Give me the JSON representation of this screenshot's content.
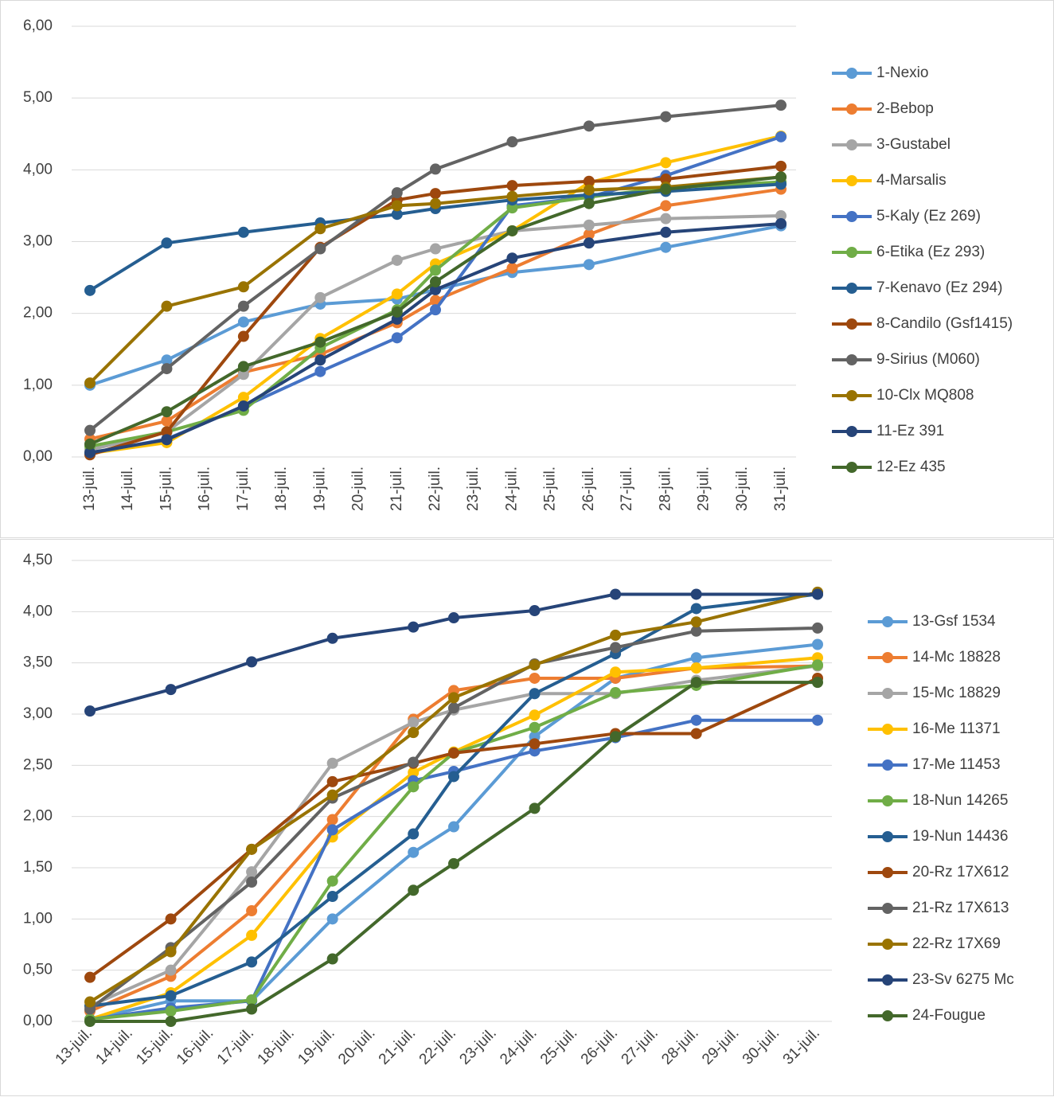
{
  "chart_data": [
    {
      "type": "line",
      "legend": "right",
      "grid": true,
      "x": [
        "13-juil.",
        "15-juil.",
        "17-juil.",
        "19-juil.",
        "21-juil.",
        "22-juil.",
        "24-juil.",
        "26-juil.",
        "28-juil.",
        "31-juil."
      ],
      "xticks": [
        "13-juil.",
        "14-juil.",
        "15-juil.",
        "16-juil.",
        "17-juil.",
        "18-juil.",
        "19-juil.",
        "20-juil.",
        "21-juil.",
        "22-juil.",
        "23-juil.",
        "24-juil.",
        "25-juil.",
        "26-juil.",
        "27-juil.",
        "28-juil.",
        "29-juil.",
        "30-juil.",
        "31-juil."
      ],
      "ylim": [
        0,
        6
      ],
      "yticks": [
        {
          "value": 0,
          "label": "0,00"
        },
        {
          "value": 1,
          "label": "1,00"
        },
        {
          "value": 2,
          "label": "2,00"
        },
        {
          "value": 3,
          "label": "3,00"
        },
        {
          "value": 4,
          "label": "4,00"
        },
        {
          "value": 5,
          "label": "5,00"
        },
        {
          "value": 6,
          "label": "6,00"
        }
      ],
      "series": [
        {
          "name": "1-Nexio",
          "color": "#5b9bd5",
          "values": [
            1.0,
            1.35,
            1.88,
            2.13,
            2.2,
            2.33,
            2.57,
            2.68,
            2.92,
            3.22
          ]
        },
        {
          "name": "2-Bebop",
          "color": "#ed7d31",
          "values": [
            0.25,
            0.5,
            1.18,
            1.43,
            1.87,
            2.18,
            2.63,
            3.1,
            3.5,
            3.73
          ]
        },
        {
          "name": "3-Gustabel",
          "color": "#a5a5a5",
          "values": [
            0.1,
            0.35,
            1.15,
            2.22,
            2.74,
            2.9,
            3.15,
            3.23,
            3.32,
            3.36
          ]
        },
        {
          "name": "4-Marsalis",
          "color": "#ffc000",
          "values": [
            0.05,
            0.2,
            0.83,
            1.65,
            2.27,
            2.69,
            3.15,
            3.82,
            4.1,
            4.47
          ]
        },
        {
          "name": "5-Kaly (Ez 269)",
          "color": "#4472c4",
          "values": [
            0.05,
            0.25,
            0.7,
            1.19,
            1.66,
            2.05,
            3.5,
            3.62,
            3.92,
            4.46
          ]
        },
        {
          "name": "6-Etika (Ez 293)",
          "color": "#70ad47",
          "values": [
            0.15,
            0.35,
            0.65,
            1.52,
            2.05,
            2.6,
            3.47,
            3.62,
            3.75,
            3.83
          ]
        },
        {
          "name": "7-Kenavo (Ez 294)",
          "color": "#255e91",
          "values": [
            2.32,
            2.98,
            3.13,
            3.26,
            3.38,
            3.46,
            3.58,
            3.65,
            3.7,
            3.8
          ]
        },
        {
          "name": "8-Candilo (Gsf1415)",
          "color": "#9e480e",
          "values": [
            0.03,
            0.35,
            1.68,
            2.92,
            3.58,
            3.67,
            3.78,
            3.84,
            3.87,
            4.05
          ]
        },
        {
          "name": "9-Sirius (M060)",
          "color": "#636363",
          "values": [
            0.37,
            1.23,
            2.1,
            2.9,
            3.68,
            4.01,
            4.39,
            4.61,
            4.74,
            4.9
          ]
        },
        {
          "name": "10-Clx MQ808",
          "color": "#997300",
          "values": [
            1.03,
            2.1,
            2.37,
            3.18,
            3.5,
            3.53,
            3.63,
            3.72,
            3.76,
            3.9
          ]
        },
        {
          "name": "11-Ez 391",
          "color": "#264478",
          "values": [
            0.06,
            0.24,
            0.71,
            1.35,
            1.92,
            2.33,
            2.77,
            2.98,
            3.13,
            3.25
          ]
        },
        {
          "name": "12-Ez 435",
          "color": "#43682b",
          "values": [
            0.18,
            0.63,
            1.26,
            1.6,
            2.02,
            2.44,
            3.15,
            3.53,
            3.73,
            3.9
          ]
        }
      ]
    },
    {
      "type": "line",
      "legend": "right",
      "grid": true,
      "x": [
        "13-juil.",
        "15-juil.",
        "17-juil.",
        "19-juil.",
        "21-juil.",
        "22-juil.",
        "24-juil.",
        "26-juil.",
        "28-juil.",
        "31-juil."
      ],
      "xticks": [
        "13-juil.",
        "14-juil.",
        "15-juil.",
        "16-juil.",
        "17-juil.",
        "18-juil.",
        "19-juil.",
        "20-juil.",
        "21-juil.",
        "22-juil.",
        "23-juil.",
        "24-juil.",
        "25-juil.",
        "26-juil.",
        "27-juil.",
        "28-juil.",
        "29-juil.",
        "30-juil.",
        "31-juil."
      ],
      "ylim": [
        0,
        4.5
      ],
      "yticks": [
        {
          "value": 0,
          "label": "0,00"
        },
        {
          "value": 0.5,
          "label": "0,50"
        },
        {
          "value": 1,
          "label": "1,00"
        },
        {
          "value": 1.5,
          "label": "1,50"
        },
        {
          "value": 2,
          "label": "2,00"
        },
        {
          "value": 2.5,
          "label": "2,50"
        },
        {
          "value": 3,
          "label": "3,00"
        },
        {
          "value": 3.5,
          "label": "3,50"
        },
        {
          "value": 4,
          "label": "4,00"
        },
        {
          "value": 4.5,
          "label": "4,50"
        }
      ],
      "series": [
        {
          "name": "13-Gsf 1534",
          "color": "#5b9bd5",
          "values": [
            0.02,
            0.2,
            0.2,
            1.0,
            1.65,
            1.9,
            2.78,
            3.35,
            3.55,
            3.68
          ]
        },
        {
          "name": "14-Mc 18828",
          "color": "#ed7d31",
          "values": [
            0.1,
            0.44,
            1.08,
            1.97,
            2.95,
            3.23,
            3.35,
            3.35,
            3.45,
            3.47
          ]
        },
        {
          "name": "15-Mc 18829",
          "color": "#a5a5a5",
          "values": [
            0.15,
            0.5,
            1.46,
            2.52,
            2.92,
            3.04,
            3.2,
            3.2,
            3.33,
            3.47
          ]
        },
        {
          "name": "16-Me 11371",
          "color": "#ffc000",
          "values": [
            0.02,
            0.28,
            0.84,
            1.8,
            2.43,
            2.63,
            2.99,
            3.41,
            3.45,
            3.55
          ]
        },
        {
          "name": "17-Me 11453",
          "color": "#4472c4",
          "values": [
            0.02,
            0.13,
            0.2,
            1.87,
            2.35,
            2.44,
            2.64,
            2.77,
            2.94,
            2.94
          ]
        },
        {
          "name": "18-Nun 14265",
          "color": "#70ad47",
          "values": [
            0.02,
            0.1,
            0.21,
            1.37,
            2.29,
            2.62,
            2.87,
            3.21,
            3.28,
            3.48
          ]
        },
        {
          "name": "19-Nun 14436",
          "color": "#255e91",
          "values": [
            0.15,
            0.25,
            0.58,
            1.22,
            1.83,
            2.39,
            3.2,
            3.59,
            4.03,
            4.17
          ]
        },
        {
          "name": "20-Rz 17X612",
          "color": "#9e480e",
          "values": [
            0.43,
            1.0,
            1.68,
            2.34,
            2.52,
            2.62,
            2.71,
            2.81,
            2.81,
            3.35
          ]
        },
        {
          "name": "21-Rz 17X613",
          "color": "#636363",
          "values": [
            0.12,
            0.72,
            1.36,
            2.18,
            2.53,
            3.06,
            3.49,
            3.65,
            3.81,
            3.84
          ]
        },
        {
          "name": "22-Rz 17X69",
          "color": "#997300",
          "values": [
            0.19,
            0.68,
            1.68,
            2.21,
            2.82,
            3.16,
            3.48,
            3.77,
            3.9,
            4.19
          ]
        },
        {
          "name": "23-Sv 6275 Mc",
          "color": "#264478",
          "values": [
            3.03,
            3.24,
            3.51,
            3.74,
            3.85,
            3.94,
            4.01,
            4.17,
            4.17,
            4.17
          ]
        },
        {
          "name": "24-Fougue",
          "color": "#43682b",
          "values": [
            0.0,
            0.0,
            0.12,
            0.61,
            1.28,
            1.54,
            2.08,
            2.78,
            3.31,
            3.31
          ]
        }
      ]
    }
  ]
}
